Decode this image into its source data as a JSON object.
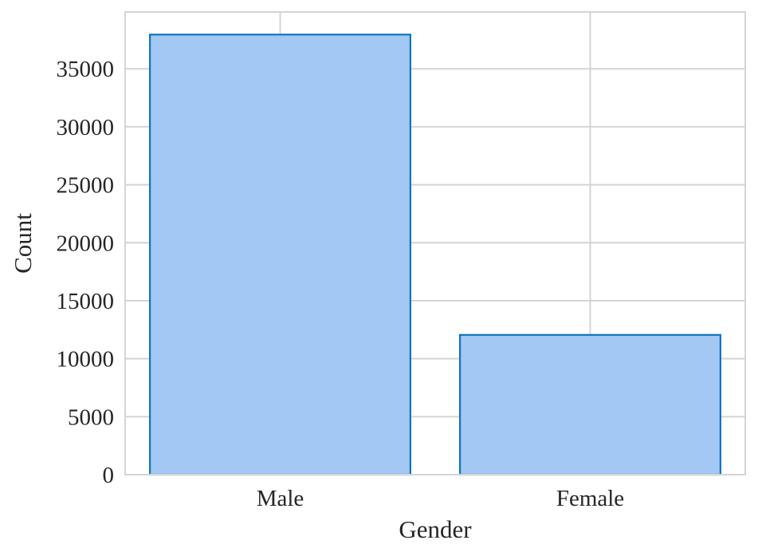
{
  "chart_data": {
    "type": "bar",
    "categories": [
      "Male",
      "Female"
    ],
    "values": [
      37950,
      12050
    ],
    "title": "",
    "xlabel": "Gender",
    "ylabel": "Count",
    "ylim": [
      0,
      39900
    ],
    "yticks": [
      0,
      5000,
      10000,
      15000,
      20000,
      25000,
      30000,
      35000
    ],
    "ytick_labels": [
      "0",
      "5000",
      "10000",
      "15000",
      "20000",
      "25000",
      "30000",
      "35000"
    ],
    "grid": true,
    "colors": {
      "bar_fill": "#a3c8f3",
      "bar_edge": "#0f74c0",
      "grid": "#d4d4d4",
      "text": "#262626"
    }
  }
}
